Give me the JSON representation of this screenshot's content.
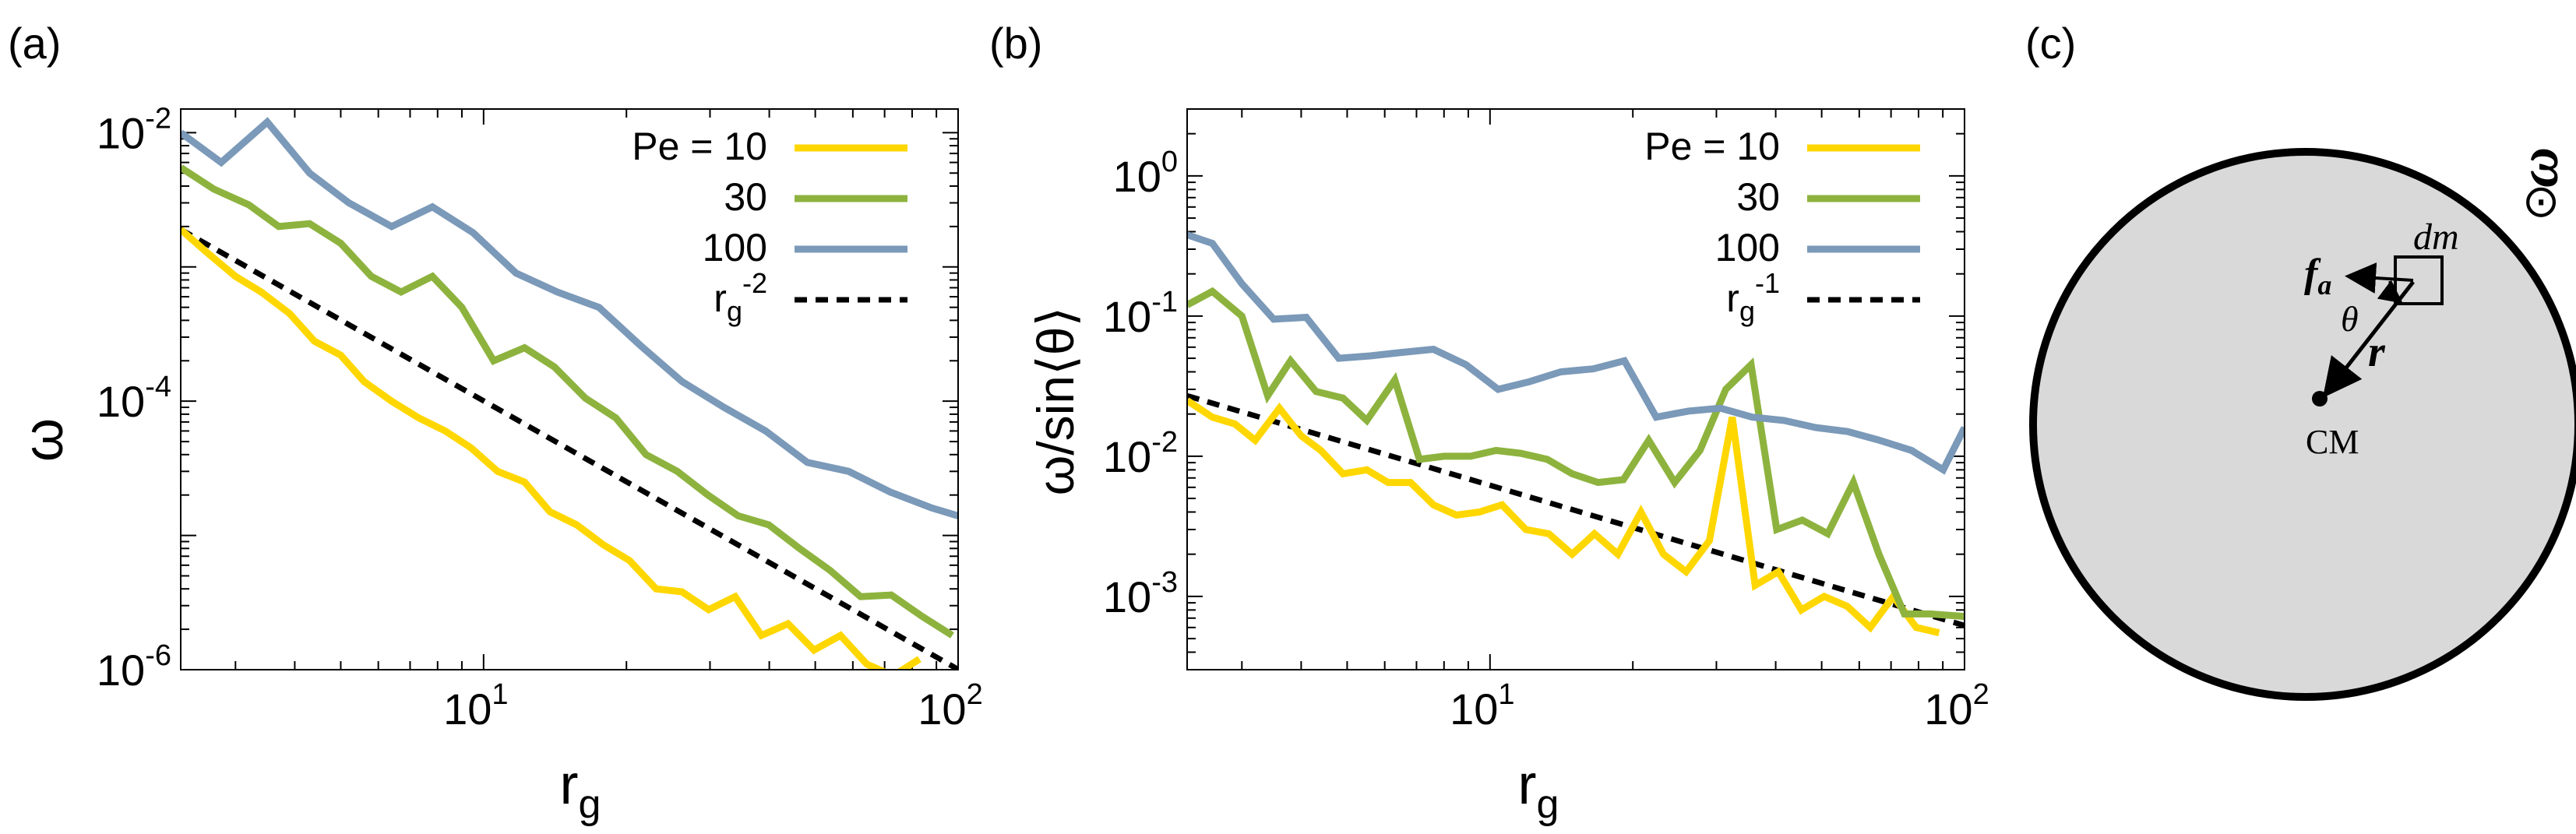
{
  "chart_data": [
    {
      "type": "line",
      "panel_label": "(a)",
      "xscale": "log",
      "yscale": "log",
      "xlim": [
        2.3,
        100
      ],
      "ylim": [
        1e-06,
        0.015
      ],
      "xlabel": "r",
      "xlabel_sub": "g",
      "ylabel": "ω",
      "xticks": [
        {
          "value": 10,
          "base": "10",
          "exp": "1"
        },
        {
          "value": 100,
          "base": "10",
          "exp": "2"
        }
      ],
      "yticks": [
        {
          "value": 1e-06,
          "base": "10",
          "exp": "-6"
        },
        {
          "value": 0.0001,
          "base": "10",
          "exp": "-4"
        },
        {
          "value": 0.01,
          "base": "10",
          "exp": "-2"
        }
      ],
      "legend_position": "top-right",
      "series": [
        {
          "name": "Pe = 10",
          "color": "#ffd700",
          "x": [
            2.3,
            2.6,
            3.0,
            3.4,
            3.9,
            4.4,
            5.0,
            5.6,
            6.4,
            7.3,
            8.3,
            9.4,
            10.7,
            12.2,
            13.8,
            15.7,
            17.9,
            20.3,
            23.1,
            26.2,
            29.8,
            33.9,
            38.5,
            43.8,
            49.7,
            56.5,
            64.2,
            73.0,
            82.9
          ],
          "y": [
            0.0019,
            0.0013,
            0.00085,
            0.00065,
            0.00045,
            0.00028,
            0.00022,
            0.00014,
            0.0001,
            7.5e-05,
            6e-05,
            4.5e-05,
            3e-05,
            2.5e-05,
            1.5e-05,
            1.2e-05,
            8.5e-06,
            6.5e-06,
            4e-06,
            3.8e-06,
            2.8e-06,
            3.5e-06,
            1.8e-06,
            2.2e-06,
            1.4e-06,
            1.8e-06,
            1.1e-06,
            9e-07,
            1.2e-06
          ]
        },
        {
          "name": "30",
          "color": "#8db33e",
          "x": [
            2.3,
            2.7,
            3.2,
            3.7,
            4.3,
            5.0,
            5.8,
            6.7,
            7.8,
            9.0,
            10.5,
            12.2,
            14.1,
            16.4,
            19.0,
            22.0,
            25.6,
            29.7,
            34.4,
            39.9,
            46.3,
            53.7,
            62.3,
            72.3,
            83.9,
            97.2
          ],
          "y": [
            0.0055,
            0.0038,
            0.0029,
            0.002,
            0.0021,
            0.0015,
            0.00085,
            0.00065,
            0.00085,
            0.0005,
            0.0002,
            0.00025,
            0.00018,
            0.000105,
            7.5e-05,
            4e-05,
            3e-05,
            2e-05,
            1.4e-05,
            1.2e-05,
            8e-06,
            5.5e-06,
            3.5e-06,
            3.6e-06,
            2.5e-06,
            1.8e-06
          ]
        },
        {
          "name": "100",
          "color": "#7b99b8",
          "x": [
            2.3,
            2.8,
            3.5,
            4.3,
            5.2,
            6.4,
            7.8,
            9.5,
            11.7,
            14.3,
            17.5,
            21.4,
            26.2,
            32.1,
            39.3,
            48.1,
            58.8,
            72.0,
            88.1,
            100
          ],
          "y": [
            0.01,
            0.006,
            0.012,
            0.005,
            0.003,
            0.002,
            0.0028,
            0.0018,
            0.0009,
            0.00065,
            0.0005,
            0.00026,
            0.00014,
            9e-05,
            6e-05,
            3.5e-05,
            3e-05,
            2.1e-05,
            1.6e-05,
            1.4e-05
          ]
        },
        {
          "name": "r",
          "sub": "g",
          "sup": "-2",
          "color": "#000000",
          "dashed": true,
          "x": [
            2.3,
            100
          ],
          "y": [
            0.0019,
            1.005e-06
          ]
        }
      ]
    },
    {
      "type": "line",
      "panel_label": "(b)",
      "xscale": "log",
      "yscale": "log",
      "xlim": [
        2.3,
        100
      ],
      "ylim": [
        0.0003,
        3.0
      ],
      "xlabel": "r",
      "xlabel_sub": "g",
      "ylabel": "ω/sin⟨θ⟩",
      "xticks": [
        {
          "value": 10,
          "base": "10",
          "exp": "1"
        },
        {
          "value": 100,
          "base": "10",
          "exp": "2"
        }
      ],
      "yticks": [
        {
          "value": 0.001,
          "base": "10",
          "exp": "-3"
        },
        {
          "value": 0.01,
          "base": "10",
          "exp": "-2"
        },
        {
          "value": 0.1,
          "base": "10",
          "exp": "-1"
        },
        {
          "value": 1,
          "base": "10",
          "exp": "0"
        }
      ],
      "legend_position": "top-right",
      "series": [
        {
          "name": "Pe = 10",
          "color": "#ffd700",
          "x": [
            2.3,
            2.6,
            2.9,
            3.2,
            3.6,
            4.0,
            4.4,
            4.9,
            5.5,
            6.1,
            6.8,
            7.6,
            8.5,
            9.5,
            10.6,
            11.9,
            13.3,
            14.9,
            16.6,
            18.6,
            20.8,
            23.2,
            25.9,
            29.0,
            32.4,
            36.2,
            40.5,
            45.3,
            50.6,
            56.6,
            63.3,
            70.8,
            79.1,
            88.4
          ],
          "y": [
            0.025,
            0.019,
            0.017,
            0.013,
            0.022,
            0.014,
            0.011,
            0.0075,
            0.008,
            0.0065,
            0.0065,
            0.0045,
            0.0038,
            0.004,
            0.0045,
            0.003,
            0.0028,
            0.002,
            0.0028,
            0.002,
            0.004,
            0.002,
            0.0015,
            0.0025,
            0.019,
            0.0012,
            0.0015,
            0.0008,
            0.001,
            0.00085,
            0.0006,
            0.001,
            0.0006,
            0.00055
          ]
        },
        {
          "name": "30",
          "color": "#8db33e",
          "x": [
            2.3,
            2.6,
            3.0,
            3.4,
            3.8,
            4.3,
            4.9,
            5.5,
            6.3,
            7.1,
            8.0,
            9.1,
            10.3,
            11.6,
            13.2,
            14.9,
            16.9,
            19.1,
            21.6,
            24.5,
            27.7,
            31.4,
            35.5,
            40.2,
            45.5,
            51.5,
            58.3,
            66.0,
            74.7,
            84.6,
            100
          ],
          "y": [
            0.12,
            0.15,
            0.1,
            0.027,
            0.048,
            0.029,
            0.026,
            0.018,
            0.035,
            0.0095,
            0.01,
            0.01,
            0.011,
            0.0105,
            0.0095,
            0.0075,
            0.0065,
            0.0068,
            0.013,
            0.0065,
            0.011,
            0.03,
            0.045,
            0.003,
            0.0035,
            0.0028,
            0.0065,
            0.002,
            0.00075,
            0.00075,
            0.00072
          ]
        },
        {
          "name": "100",
          "color": "#7b99b8",
          "x": [
            2.3,
            2.6,
            3.0,
            3.5,
            4.1,
            4.8,
            5.6,
            6.5,
            7.6,
            8.9,
            10.4,
            12.1,
            14.1,
            16.5,
            19.2,
            22.4,
            26.2,
            30.6,
            35.7,
            41.6,
            48.6,
            56.7,
            66.2,
            77.3,
            90.2,
            100
          ],
          "y": [
            0.38,
            0.33,
            0.17,
            0.095,
            0.098,
            0.05,
            0.052,
            0.055,
            0.058,
            0.045,
            0.03,
            0.034,
            0.04,
            0.042,
            0.048,
            0.019,
            0.021,
            0.022,
            0.019,
            0.018,
            0.016,
            0.015,
            0.013,
            0.011,
            0.008,
            0.016
          ]
        },
        {
          "name": "r",
          "sub": "g",
          "sup": "-1",
          "color": "#000000",
          "dashed": true,
          "x": [
            2.3,
            100
          ],
          "y": [
            0.027,
            0.00062
          ]
        }
      ]
    }
  ],
  "diagram": {
    "panel_label": "(c)",
    "omega_symbol": "ω",
    "omega_direction_symbol": "⊙",
    "force_label": "f",
    "force_sub": "a",
    "mass_element_label": "dm",
    "angle_label": "θ",
    "radius_label": "r",
    "center_label": "CM",
    "colors": {
      "disk_fill": "#d9d9d9",
      "disk_stroke": "#000000"
    }
  }
}
